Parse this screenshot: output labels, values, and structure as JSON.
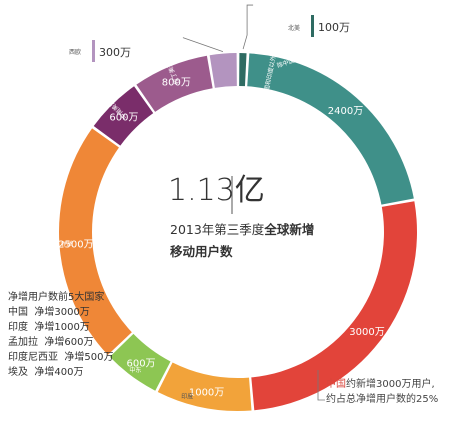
{
  "chart_data": {
    "type": "pie",
    "categories": [
      "北美",
      "除中国和印度以外的亚太地区",
      "中国",
      "印度",
      "中东",
      "非洲",
      "中南美洲",
      "拉丁美洲",
      "西欧"
    ],
    "values": [
      100,
      2400,
      3000,
      1000,
      600,
      2500,
      600,
      800,
      300
    ],
    "value_labels": [
      "100万",
      "2400万",
      "3000万",
      "1000万",
      "600万",
      "2500万",
      "600万",
      "800万",
      "300万"
    ],
    "colors": [
      "#2e6b62",
      "#3f9089",
      "#e2443a",
      "#f2a33a",
      "#8dc653",
      "#ef8737",
      "#7a2d6a",
      "#9c5b8d",
      "#b394bf"
    ],
    "center_value": "1.13亿",
    "title_line1_plain": "2013年第三季度",
    "title_line1_bold": "全球新增",
    "title_line2": "移动用户数"
  },
  "top5": {
    "heading": "净增用户数前5大国家",
    "rows": [
      {
        "country": "中国",
        "value": "净增3000万"
      },
      {
        "country": "印度",
        "value": "净增1000万"
      },
      {
        "country": "孟加拉",
        "value": "净增600万"
      },
      {
        "country": "印度尼西亚",
        "value": "净增500万"
      },
      {
        "country": "埃及",
        "value": "净增400万"
      }
    ]
  },
  "note": {
    "red": "中国",
    "line1_rest": "约新增3000万用户,",
    "line2": "约占总净增用户数的25%"
  }
}
